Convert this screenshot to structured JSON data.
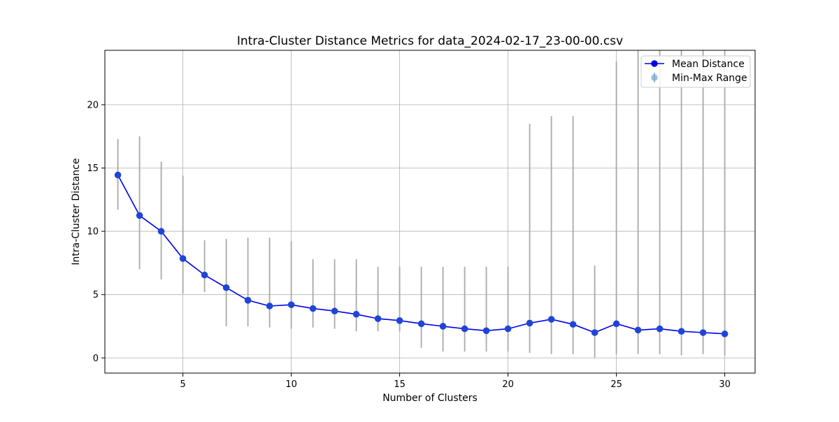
{
  "chart_data": {
    "type": "line",
    "title": "Intra-Cluster Distance Metrics for data_2024-02-17_23-00-00.csv",
    "xlabel": "Number of Clusters",
    "ylabel": "Intra-Cluster Distance",
    "xlim": [
      1.4,
      31.4
    ],
    "ylim": [
      -1.2,
      24.3
    ],
    "xticks": [
      5,
      10,
      15,
      20,
      25,
      30
    ],
    "yticks": [
      0,
      5,
      10,
      15,
      20
    ],
    "grid": true,
    "legend_position": "top-right",
    "colors": {
      "mean_line": "#0000ee",
      "mean_marker": "#1f45d6",
      "range_bar": "#a9a9a9"
    },
    "x": [
      2,
      3,
      4,
      5,
      6,
      7,
      8,
      9,
      10,
      11,
      12,
      13,
      14,
      15,
      16,
      17,
      18,
      19,
      20,
      21,
      22,
      23,
      24,
      25,
      26,
      27,
      28,
      29,
      30
    ],
    "series": [
      {
        "name": "Mean Distance",
        "values": [
          14.45,
          11.25,
          10.0,
          7.85,
          6.55,
          5.55,
          4.55,
          4.1,
          4.2,
          3.9,
          3.7,
          3.45,
          3.1,
          2.95,
          2.7,
          2.5,
          2.3,
          2.15,
          2.3,
          2.75,
          3.05,
          2.65,
          2.0,
          2.7,
          2.2,
          2.3,
          2.1,
          2.0,
          1.9
        ]
      },
      {
        "name": "Min-Max Range",
        "min": [
          11.7,
          7.0,
          6.2,
          5.1,
          5.2,
          2.5,
          2.5,
          2.4,
          2.3,
          2.4,
          2.3,
          2.1,
          2.1,
          2.1,
          0.8,
          0.5,
          0.5,
          0.5,
          0.5,
          0.4,
          0.3,
          0.3,
          0.0,
          0.3,
          0.3,
          0.3,
          0.2,
          0.3,
          0.2
        ],
        "max": [
          17.3,
          17.5,
          15.5,
          14.4,
          9.3,
          9.4,
          9.5,
          9.5,
          9.2,
          7.8,
          7.8,
          7.8,
          7.2,
          7.2,
          7.2,
          7.2,
          7.2,
          7.2,
          7.2,
          18.5,
          19.1,
          19.1,
          7.3,
          23.4,
          24.3,
          24.3,
          24.3,
          24.3,
          24.3
        ]
      }
    ]
  }
}
